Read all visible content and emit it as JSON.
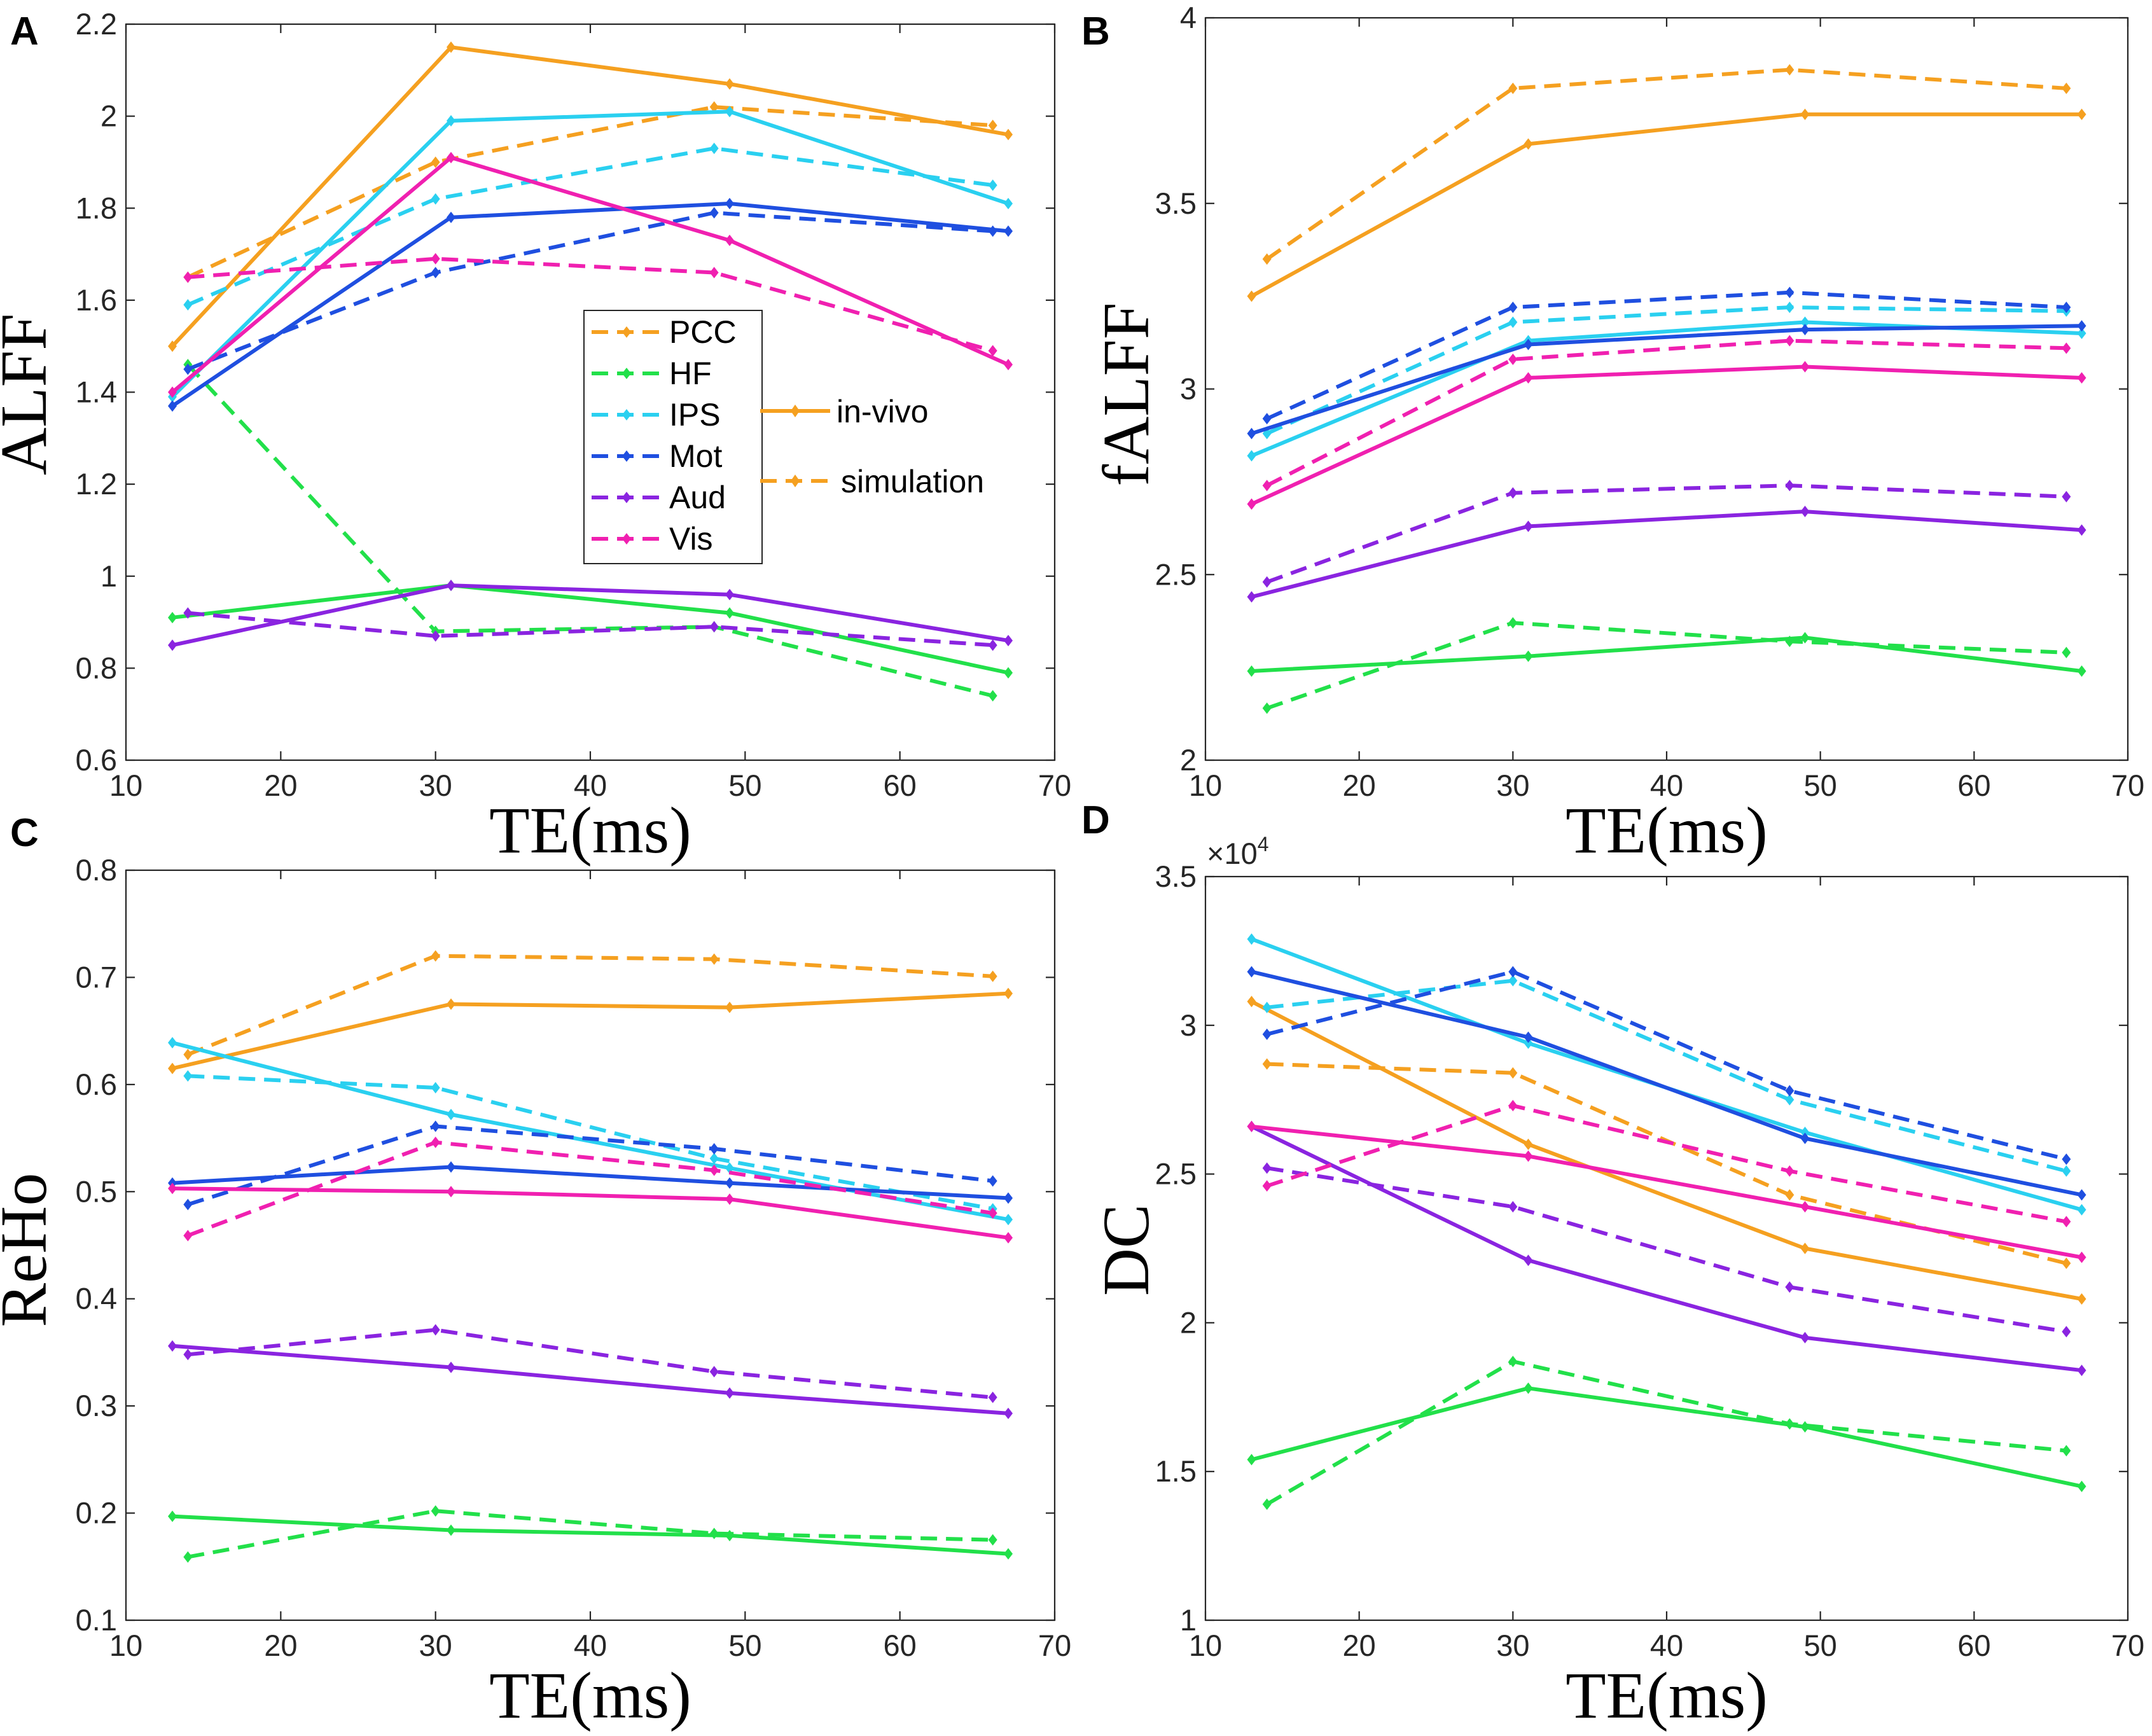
{
  "colors": {
    "PCC": "#f5a020",
    "HF": "#22e04a",
    "IPS": "#2ad0f0",
    "Mot": "#1f4fe0",
    "Aud": "#8a24e0",
    "Vis": "#f020b0"
  },
  "legend": {
    "regions": [
      "PCC",
      "HF",
      "IPS",
      "Mot",
      "Aud",
      "Vis"
    ],
    "style_invivo": "in-vivo",
    "style_simulation": "simulation"
  },
  "chart_data": [
    {
      "panel": "A",
      "type": "line",
      "title": "",
      "xlabel": "TE(ms)",
      "ylabel": "ALFF",
      "xlim": [
        10,
        70
      ],
      "ylim": [
        0.6,
        2.2
      ],
      "xticks": [
        "10",
        "20",
        "30",
        "40",
        "50",
        "60",
        "70"
      ],
      "yticks": [
        "0.6",
        "0.8",
        "1",
        "1.2",
        "1.4",
        "1.6",
        "1.8",
        "2",
        "2.2"
      ],
      "multiplier": "",
      "series": [
        {
          "name": "PCC",
          "style": "in-vivo",
          "x": [
            13,
            31,
            49,
            67
          ],
          "values": [
            1.5,
            2.15,
            2.07,
            1.96
          ]
        },
        {
          "name": "PCC",
          "style": "simulation",
          "x": [
            14,
            30,
            48,
            66
          ],
          "values": [
            1.65,
            1.9,
            2.02,
            1.98
          ]
        },
        {
          "name": "HF",
          "style": "in-vivo",
          "x": [
            13,
            31,
            49,
            67
          ],
          "values": [
            0.91,
            0.98,
            0.92,
            0.79
          ]
        },
        {
          "name": "HF",
          "style": "simulation",
          "x": [
            14,
            30,
            48,
            66
          ],
          "values": [
            1.46,
            0.88,
            0.89,
            0.74
          ]
        },
        {
          "name": "IPS",
          "style": "in-vivo",
          "x": [
            13,
            31,
            49,
            67
          ],
          "values": [
            1.39,
            1.99,
            2.01,
            1.81
          ]
        },
        {
          "name": "IPS",
          "style": "simulation",
          "x": [
            14,
            30,
            48,
            66
          ],
          "values": [
            1.59,
            1.82,
            1.93,
            1.85
          ]
        },
        {
          "name": "Mot",
          "style": "in-vivo",
          "x": [
            13,
            31,
            49,
            67
          ],
          "values": [
            1.37,
            1.78,
            1.81,
            1.75
          ]
        },
        {
          "name": "Mot",
          "style": "simulation",
          "x": [
            14,
            30,
            48,
            66
          ],
          "values": [
            1.45,
            1.66,
            1.79,
            1.75
          ]
        },
        {
          "name": "Aud",
          "style": "in-vivo",
          "x": [
            13,
            31,
            49,
            67
          ],
          "values": [
            0.85,
            0.98,
            0.96,
            0.86
          ]
        },
        {
          "name": "Aud",
          "style": "simulation",
          "x": [
            14,
            30,
            48,
            66
          ],
          "values": [
            0.92,
            0.87,
            0.89,
            0.85
          ]
        },
        {
          "name": "Vis",
          "style": "in-vivo",
          "x": [
            13,
            31,
            49,
            67
          ],
          "values": [
            1.4,
            1.91,
            1.73,
            1.46
          ]
        },
        {
          "name": "Vis",
          "style": "simulation",
          "x": [
            14,
            30,
            48,
            66
          ],
          "values": [
            1.65,
            1.69,
            1.66,
            1.49
          ]
        }
      ]
    },
    {
      "panel": "B",
      "type": "line",
      "title": "",
      "xlabel": "TE(ms)",
      "ylabel": "fALFF",
      "xlim": [
        10,
        70
      ],
      "ylim": [
        2,
        4
      ],
      "xticks": [
        "10",
        "20",
        "30",
        "40",
        "50",
        "60",
        "70"
      ],
      "yticks": [
        "2",
        "2.5",
        "3",
        "3.5",
        "4"
      ],
      "multiplier": "",
      "series": [
        {
          "name": "PCC",
          "style": "in-vivo",
          "x": [
            13,
            31,
            49,
            67
          ],
          "values": [
            3.25,
            3.66,
            3.74,
            3.74
          ]
        },
        {
          "name": "PCC",
          "style": "simulation",
          "x": [
            14,
            30,
            48,
            66
          ],
          "values": [
            3.35,
            3.81,
            3.86,
            3.81
          ]
        },
        {
          "name": "HF",
          "style": "in-vivo",
          "x": [
            13,
            31,
            49,
            67
          ],
          "values": [
            2.24,
            2.28,
            2.33,
            2.24
          ]
        },
        {
          "name": "HF",
          "style": "simulation",
          "x": [
            14,
            30,
            48,
            66
          ],
          "values": [
            2.14,
            2.37,
            2.32,
            2.29
          ]
        },
        {
          "name": "IPS",
          "style": "in-vivo",
          "x": [
            13,
            31,
            49,
            67
          ],
          "values": [
            2.82,
            3.13,
            3.18,
            3.15
          ]
        },
        {
          "name": "IPS",
          "style": "simulation",
          "x": [
            14,
            30,
            48,
            66
          ],
          "values": [
            2.88,
            3.18,
            3.22,
            3.21
          ]
        },
        {
          "name": "Mot",
          "style": "in-vivo",
          "x": [
            13,
            31,
            49,
            67
          ],
          "values": [
            2.88,
            3.12,
            3.16,
            3.17
          ]
        },
        {
          "name": "Mot",
          "style": "simulation",
          "x": [
            14,
            30,
            48,
            66
          ],
          "values": [
            2.92,
            3.22,
            3.26,
            3.22
          ]
        },
        {
          "name": "Aud",
          "style": "in-vivo",
          "x": [
            13,
            31,
            49,
            67
          ],
          "values": [
            2.44,
            2.63,
            2.67,
            2.62
          ]
        },
        {
          "name": "Aud",
          "style": "simulation",
          "x": [
            14,
            30,
            48,
            66
          ],
          "values": [
            2.48,
            2.72,
            2.74,
            2.71
          ]
        },
        {
          "name": "Vis",
          "style": "in-vivo",
          "x": [
            13,
            31,
            49,
            67
          ],
          "values": [
            2.69,
            3.03,
            3.06,
            3.03
          ]
        },
        {
          "name": "Vis",
          "style": "simulation",
          "x": [
            14,
            30,
            48,
            66
          ],
          "values": [
            2.74,
            3.08,
            3.13,
            3.11
          ]
        }
      ]
    },
    {
      "panel": "C",
      "type": "line",
      "title": "",
      "xlabel": "TE(ms)",
      "ylabel": "ReHo",
      "xlim": [
        10,
        70
      ],
      "ylim": [
        0.1,
        0.8
      ],
      "xticks": [
        "10",
        "20",
        "30",
        "40",
        "50",
        "60",
        "70"
      ],
      "yticks": [
        "0.1",
        "0.2",
        "0.3",
        "0.4",
        "0.5",
        "0.6",
        "0.7",
        "0.8"
      ],
      "multiplier": "",
      "series": [
        {
          "name": "PCC",
          "style": "in-vivo",
          "x": [
            13,
            31,
            49,
            67
          ],
          "values": [
            0.615,
            0.675,
            0.672,
            0.685
          ]
        },
        {
          "name": "PCC",
          "style": "simulation",
          "x": [
            14,
            30,
            48,
            66
          ],
          "values": [
            0.628,
            0.72,
            0.717,
            0.701
          ]
        },
        {
          "name": "HF",
          "style": "in-vivo",
          "x": [
            13,
            31,
            49,
            67
          ],
          "values": [
            0.197,
            0.184,
            0.179,
            0.162
          ]
        },
        {
          "name": "HF",
          "style": "simulation",
          "x": [
            14,
            30,
            48,
            66
          ],
          "values": [
            0.159,
            0.202,
            0.181,
            0.175
          ]
        },
        {
          "name": "IPS",
          "style": "in-vivo",
          "x": [
            13,
            31,
            49,
            67
          ],
          "values": [
            0.639,
            0.572,
            0.522,
            0.474
          ]
        },
        {
          "name": "IPS",
          "style": "simulation",
          "x": [
            14,
            30,
            48,
            66
          ],
          "values": [
            0.608,
            0.597,
            0.531,
            0.484
          ]
        },
        {
          "name": "Mot",
          "style": "in-vivo",
          "x": [
            13,
            31,
            49,
            67
          ],
          "values": [
            0.508,
            0.523,
            0.508,
            0.494
          ]
        },
        {
          "name": "Mot",
          "style": "simulation",
          "x": [
            14,
            30,
            48,
            66
          ],
          "values": [
            0.488,
            0.561,
            0.54,
            0.51
          ]
        },
        {
          "name": "Aud",
          "style": "in-vivo",
          "x": [
            13,
            31,
            49,
            67
          ],
          "values": [
            0.356,
            0.336,
            0.312,
            0.293
          ]
        },
        {
          "name": "Aud",
          "style": "simulation",
          "x": [
            14,
            30,
            48,
            66
          ],
          "values": [
            0.348,
            0.371,
            0.332,
            0.308
          ]
        },
        {
          "name": "Vis",
          "style": "in-vivo",
          "x": [
            13,
            31,
            49,
            67
          ],
          "values": [
            0.503,
            0.5,
            0.493,
            0.457
          ]
        },
        {
          "name": "Vis",
          "style": "simulation",
          "x": [
            14,
            30,
            48,
            66
          ],
          "values": [
            0.459,
            0.546,
            0.52,
            0.48
          ]
        }
      ]
    },
    {
      "panel": "D",
      "type": "line",
      "title": "",
      "xlabel": "TE(ms)",
      "ylabel": "DC",
      "xlim": [
        10,
        70
      ],
      "ylim": [
        1,
        3.5
      ],
      "xticks": [
        "10",
        "20",
        "30",
        "40",
        "50",
        "60",
        "70"
      ],
      "yticks": [
        "1",
        "1.5",
        "2",
        "2.5",
        "3",
        "3.5"
      ],
      "multiplier": "×10",
      "multiplier_exp": "4",
      "series": [
        {
          "name": "PCC",
          "style": "in-vivo",
          "x": [
            13,
            31,
            49,
            67
          ],
          "values": [
            3.08,
            2.6,
            2.25,
            2.08
          ]
        },
        {
          "name": "PCC",
          "style": "simulation",
          "x": [
            14,
            30,
            48,
            66
          ],
          "values": [
            2.87,
            2.84,
            2.43,
            2.2
          ]
        },
        {
          "name": "HF",
          "style": "in-vivo",
          "x": [
            13,
            31,
            49,
            67
          ],
          "values": [
            1.54,
            1.78,
            1.65,
            1.45
          ]
        },
        {
          "name": "HF",
          "style": "simulation",
          "x": [
            14,
            30,
            48,
            66
          ],
          "values": [
            1.39,
            1.87,
            1.66,
            1.57
          ]
        },
        {
          "name": "IPS",
          "style": "in-vivo",
          "x": [
            13,
            31,
            49,
            67
          ],
          "values": [
            3.29,
            2.94,
            2.64,
            2.38
          ]
        },
        {
          "name": "IPS",
          "style": "simulation",
          "x": [
            14,
            30,
            48,
            66
          ],
          "values": [
            3.06,
            3.15,
            2.75,
            2.51
          ]
        },
        {
          "name": "Mot",
          "style": "in-vivo",
          "x": [
            13,
            31,
            49,
            67
          ],
          "values": [
            3.18,
            2.96,
            2.62,
            2.43
          ]
        },
        {
          "name": "Mot",
          "style": "simulation",
          "x": [
            14,
            30,
            48,
            66
          ],
          "values": [
            2.97,
            3.18,
            2.78,
            2.55
          ]
        },
        {
          "name": "Aud",
          "style": "in-vivo",
          "x": [
            13,
            31,
            49,
            67
          ],
          "values": [
            2.66,
            2.21,
            1.95,
            1.84
          ]
        },
        {
          "name": "Aud",
          "style": "simulation",
          "x": [
            14,
            30,
            48,
            66
          ],
          "values": [
            2.52,
            2.39,
            2.12,
            1.97
          ]
        },
        {
          "name": "Vis",
          "style": "in-vivo",
          "x": [
            13,
            31,
            49,
            67
          ],
          "values": [
            2.66,
            2.56,
            2.39,
            2.22
          ]
        },
        {
          "name": "Vis",
          "style": "simulation",
          "x": [
            14,
            30,
            48,
            66
          ],
          "values": [
            2.46,
            2.73,
            2.51,
            2.34
          ]
        }
      ]
    }
  ]
}
